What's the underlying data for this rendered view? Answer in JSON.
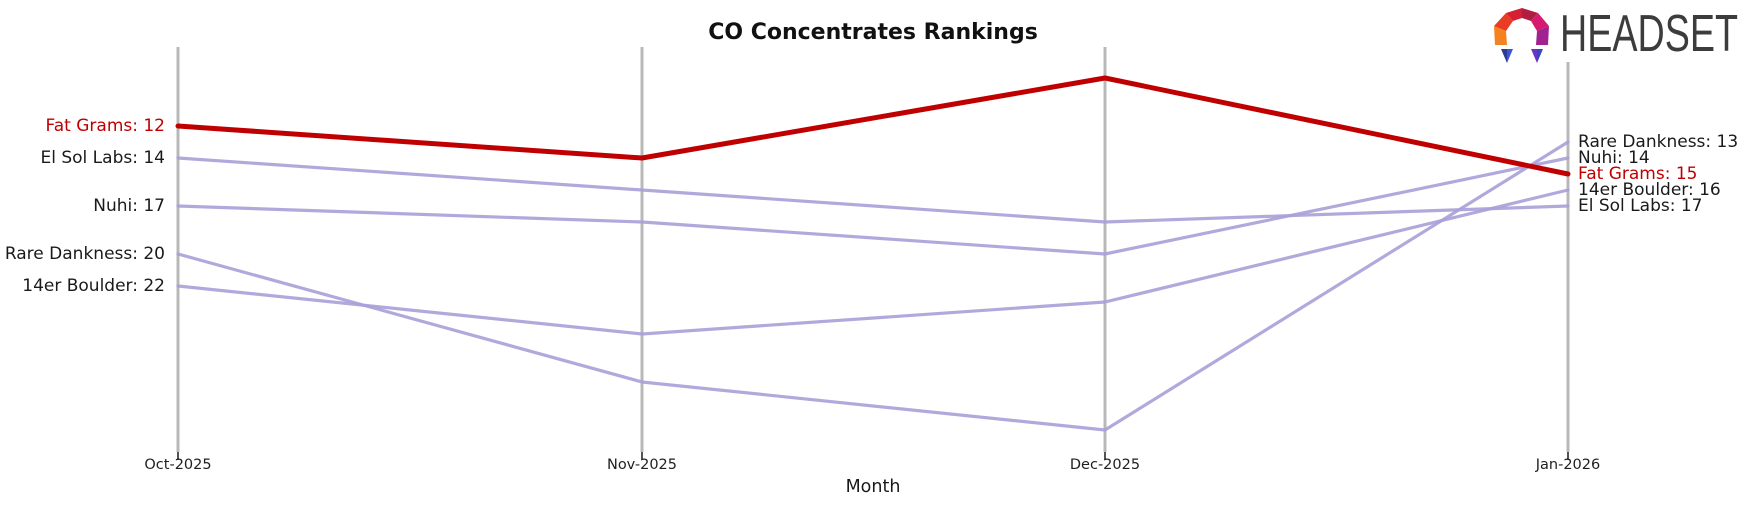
{
  "title": "CO Concentrates Rankings",
  "xlabel": "Month",
  "logo": {
    "text": "HEADSET"
  },
  "colors": {
    "highlight": "#c00000",
    "line": "#a8a0d8",
    "axis": "#b8b8b8",
    "tick": "#1a1a1a",
    "text": "#1a1a1a",
    "logo_text": "#3c3c3c"
  },
  "chart_data": {
    "type": "line",
    "variant": "bump-ranking",
    "title": "CO Concentrates Rankings",
    "xlabel": "Month",
    "x": [
      "Oct-2025",
      "Nov-2025",
      "Dec-2025",
      "Jan-2026"
    ],
    "y_axis": "rank (lower is better, inverted, no visible y ticks)",
    "grid": "vertical line per month",
    "legend": "endpoint labels left and right",
    "series": [
      {
        "name": "Fat Grams",
        "values": [
          12,
          14,
          9,
          15
        ],
        "color": "#c00000",
        "highlight": true
      },
      {
        "name": "El Sol Labs",
        "values": [
          14,
          16,
          18,
          17
        ],
        "color": "#a8a0d8",
        "highlight": false
      },
      {
        "name": "Nuhi",
        "values": [
          17,
          18,
          20,
          14
        ],
        "color": "#a8a0d8",
        "highlight": false
      },
      {
        "name": "Rare Dankness",
        "values": [
          20,
          28,
          31,
          13
        ],
        "color": "#a8a0d8",
        "highlight": false
      },
      {
        "name": "14er Boulder",
        "values": [
          22,
          25,
          23,
          16
        ],
        "color": "#a8a0d8",
        "highlight": false
      }
    ],
    "left_labels": [
      {
        "text": "Fat Grams: 12",
        "rank": 12,
        "highlight": true
      },
      {
        "text": "El Sol Labs: 14",
        "rank": 14,
        "highlight": false
      },
      {
        "text": "Nuhi: 17",
        "rank": 17,
        "highlight": false
      },
      {
        "text": "Rare Dankness: 20",
        "rank": 20,
        "highlight": false
      },
      {
        "text": "14er Boulder: 22",
        "rank": 22,
        "highlight": false
      }
    ],
    "right_labels": [
      {
        "text": "Rare Dankness: 13",
        "rank": 13,
        "highlight": false
      },
      {
        "text": "Nuhi: 14",
        "rank": 14,
        "highlight": false
      },
      {
        "text": "Fat Grams: 15",
        "rank": 15,
        "highlight": true
      },
      {
        "text": "14er Boulder: 16",
        "rank": 16,
        "highlight": false
      },
      {
        "text": "El Sol Labs: 17",
        "rank": 17,
        "highlight": false
      }
    ]
  }
}
